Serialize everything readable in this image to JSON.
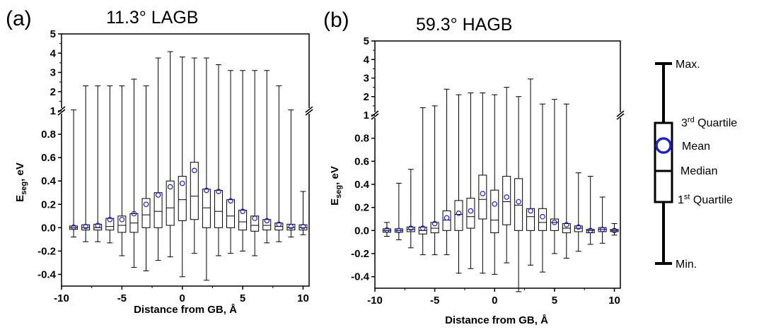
{
  "chart_data": [
    {
      "type": "box",
      "panel_label": "(a)",
      "title": "11.3° LAGB",
      "xlabel": "Distance from GB, Å",
      "ylabel_main": "E",
      "ylabel_sub": "seg",
      "ylabel_suffix": ", eV",
      "xlim": [
        -10,
        10.5
      ],
      "xticks": [
        -10,
        -5,
        0,
        5,
        10
      ],
      "ylim_lower": [
        -0.5,
        1.0
      ],
      "yticks_lower": [
        -0.4,
        -0.2,
        0.0,
        0.2,
        0.4,
        0.6,
        0.8,
        1
      ],
      "ylim_upper": [
        1,
        5
      ],
      "yticks_upper": [
        2,
        3,
        4,
        5
      ],
      "axis_break": 1,
      "boxes": [
        {
          "x": -9,
          "min": -0.08,
          "q1": -0.015,
          "median": 0.0,
          "q3": 0.015,
          "max": 1.05,
          "mean": 0.005
        },
        {
          "x": -8,
          "min": -0.12,
          "q1": -0.02,
          "median": 0.0,
          "q3": 0.025,
          "max": 2.3,
          "mean": 0.01
        },
        {
          "x": -7,
          "min": -0.12,
          "q1": -0.02,
          "median": 0.0,
          "q3": 0.03,
          "max": 2.3,
          "mean": 0.02
        },
        {
          "x": -6,
          "min": -0.13,
          "q1": -0.02,
          "median": 0.01,
          "q3": 0.08,
          "max": 2.3,
          "mean": 0.07
        },
        {
          "x": -5,
          "min": -0.24,
          "q1": -0.04,
          "median": 0.02,
          "q3": 0.1,
          "max": 2.3,
          "mean": 0.07
        },
        {
          "x": -4,
          "min": -0.34,
          "q1": -0.04,
          "median": 0.04,
          "q3": 0.12,
          "max": 2.65,
          "mean": 0.12
        },
        {
          "x": -3,
          "min": -0.37,
          "q1": 0.0,
          "median": 0.11,
          "q3": 0.25,
          "max": 2.3,
          "mean": 0.2
        },
        {
          "x": -2,
          "min": -0.28,
          "q1": 0.0,
          "median": 0.14,
          "q3": 0.3,
          "max": 3.75,
          "mean": 0.28
        },
        {
          "x": -1,
          "min": -0.25,
          "q1": 0.02,
          "median": 0.17,
          "q3": 0.4,
          "max": 4.08,
          "mean": 0.35
        },
        {
          "x": 0,
          "min": -0.42,
          "q1": 0.06,
          "median": 0.24,
          "q3": 0.44,
          "max": 3.8,
          "mean": 0.38
        },
        {
          "x": 1,
          "min": -0.22,
          "q1": 0.07,
          "median": 0.27,
          "q3": 0.56,
          "max": 3.75,
          "mean": 0.49
        },
        {
          "x": 2,
          "min": -0.45,
          "q1": 0.0,
          "median": 0.17,
          "q3": 0.33,
          "max": 3.75,
          "mean": 0.32
        },
        {
          "x": 3,
          "min": -0.24,
          "q1": 0.0,
          "median": 0.14,
          "q3": 0.32,
          "max": 3.4,
          "mean": 0.31
        },
        {
          "x": 4,
          "min": -0.22,
          "q1": 0.0,
          "median": 0.1,
          "q3": 0.24,
          "max": 3.1,
          "mean": 0.23
        },
        {
          "x": 5,
          "min": -0.2,
          "q1": -0.02,
          "median": 0.05,
          "q3": 0.15,
          "max": 3.1,
          "mean": 0.14
        },
        {
          "x": 6,
          "min": -0.24,
          "q1": -0.03,
          "median": 0.02,
          "q3": 0.1,
          "max": 3.1,
          "mean": 0.08
        },
        {
          "x": 7,
          "min": -0.13,
          "q1": -0.02,
          "median": 0.02,
          "q3": 0.07,
          "max": 3.1,
          "mean": 0.06
        },
        {
          "x": 8,
          "min": -0.12,
          "q1": -0.02,
          "median": 0.01,
          "q3": 0.04,
          "max": 2.3,
          "mean": 0.03
        },
        {
          "x": 9,
          "min": -0.08,
          "q1": -0.02,
          "median": 0.0,
          "q3": 0.03,
          "max": 1.05,
          "mean": 0.01
        },
        {
          "x": 10,
          "min": -0.06,
          "q1": -0.02,
          "median": 0.0,
          "q3": 0.025,
          "max": 0.31,
          "mean": 0.01
        }
      ]
    },
    {
      "type": "box",
      "panel_label": "(b)",
      "title": "59.3° HAGB",
      "xlabel": "Distance from GB, Å",
      "ylabel_main": "E",
      "ylabel_sub": "seg",
      "ylabel_suffix": ", eV",
      "xlim": [
        -10,
        10.5
      ],
      "xticks": [
        -10,
        -5,
        0,
        5,
        10
      ],
      "ylim_lower": [
        -0.5,
        1.0
      ],
      "yticks_lower": [
        -0.4,
        -0.2,
        0.0,
        0.2,
        0.4,
        0.6,
        0.8,
        1
      ],
      "ylim_upper": [
        1,
        5
      ],
      "yticks_upper": [
        2,
        3,
        4,
        5
      ],
      "axis_break": 1,
      "boxes": [
        {
          "x": -9,
          "min": -0.05,
          "q1": -0.015,
          "median": 0.0,
          "q3": 0.015,
          "max": 0.07,
          "mean": 0.005
        },
        {
          "x": -8,
          "min": -0.08,
          "q1": -0.015,
          "median": 0.0,
          "q3": 0.015,
          "max": 0.41,
          "mean": 0.0
        },
        {
          "x": -7,
          "min": -0.15,
          "q1": -0.01,
          "median": 0.01,
          "q3": 0.03,
          "max": 0.53,
          "mean": 0.02
        },
        {
          "x": -6,
          "min": -0.21,
          "q1": -0.03,
          "median": 0.0,
          "q3": 0.03,
          "max": 1.4,
          "mean": 0.02
        },
        {
          "x": -5,
          "min": -0.21,
          "q1": -0.02,
          "median": 0.02,
          "q3": 0.07,
          "max": 1.5,
          "mean": 0.06
        },
        {
          "x": -4,
          "min": -0.21,
          "q1": 0.0,
          "median": 0.09,
          "q3": 0.17,
          "max": 2.4,
          "mean": 0.11
        },
        {
          "x": -3,
          "min": -0.37,
          "q1": 0.0,
          "median": 0.14,
          "q3": 0.26,
          "max": 2.1,
          "mean": 0.15
        },
        {
          "x": -2,
          "min": -0.33,
          "q1": 0.02,
          "median": 0.12,
          "q3": 0.28,
          "max": 2.2,
          "mean": 0.17
        },
        {
          "x": -1,
          "min": -0.37,
          "q1": 0.1,
          "median": 0.27,
          "q3": 0.48,
          "max": 2.2,
          "mean": 0.32
        },
        {
          "x": 0,
          "min": -0.38,
          "q1": -0.02,
          "median": 0.09,
          "q3": 0.35,
          "max": 2.1,
          "mean": 0.23
        },
        {
          "x": 1,
          "min": -0.28,
          "q1": 0.05,
          "median": 0.25,
          "q3": 0.47,
          "max": 2.5,
          "mean": 0.29
        },
        {
          "x": 2,
          "min": -0.53,
          "q1": 0.0,
          "median": 0.22,
          "q3": 0.45,
          "max": 2.0,
          "mean": 0.25
        },
        {
          "x": 3,
          "min": -0.3,
          "q1": 0.0,
          "median": 0.12,
          "q3": 0.19,
          "max": 2.95,
          "mean": 0.17
        },
        {
          "x": 4,
          "min": -0.36,
          "q1": 0.0,
          "median": 0.07,
          "q3": 0.19,
          "max": 1.6,
          "mean": 0.12
        },
        {
          "x": 5,
          "min": -0.2,
          "q1": 0.0,
          "median": 0.07,
          "q3": 0.1,
          "max": 1.85,
          "mean": 0.07
        },
        {
          "x": 6,
          "min": -0.24,
          "q1": -0.02,
          "median": 0.02,
          "q3": 0.06,
          "max": 1.6,
          "mean": 0.05
        },
        {
          "x": 7,
          "min": -0.18,
          "q1": -0.01,
          "median": 0.02,
          "q3": 0.04,
          "max": 0.5,
          "mean": 0.03
        },
        {
          "x": 8,
          "min": -0.12,
          "q1": -0.02,
          "median": 0.0,
          "q3": 0.01,
          "max": 0.47,
          "mean": 0.0
        },
        {
          "x": 9,
          "min": -0.11,
          "q1": -0.01,
          "median": 0.01,
          "q3": 0.025,
          "max": 0.29,
          "mean": 0.01
        },
        {
          "x": 10,
          "min": -0.04,
          "q1": -0.01,
          "median": 0.0,
          "q3": 0.01,
          "max": 0.06,
          "mean": 0.0
        }
      ]
    }
  ],
  "legend": {
    "max_label": "Max.",
    "q3_prefix": "3",
    "q3_sup": "rd",
    "q3_suffix": " Quartile",
    "mean_label": "Mean",
    "median_label": "Median",
    "q1_prefix": "1",
    "q1_sup": "st",
    "q1_suffix": " Quartile",
    "min_label": "Min."
  },
  "colors": {
    "mean_marker": "#1f1fcc",
    "axis": "#000000",
    "box": "#000000"
  }
}
